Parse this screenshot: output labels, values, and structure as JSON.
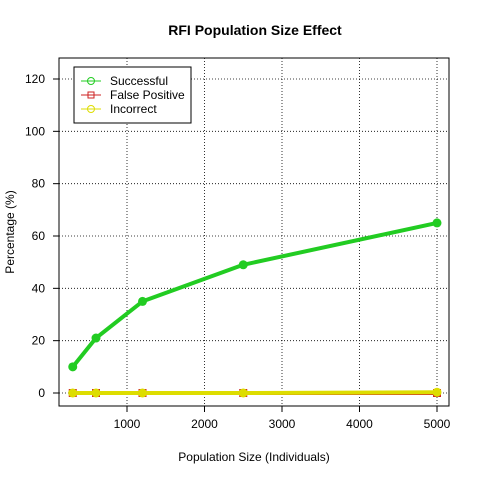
{
  "chart_data": {
    "type": "line",
    "title": "RFI Population Size Effect",
    "xlabel": "Population Size (Individuals)",
    "ylabel": "Percentage (%)",
    "xlim": [
      300,
      5000
    ],
    "ylim": [
      0,
      120
    ],
    "x_ticks": [
      1000,
      2000,
      3000,
      4000,
      5000
    ],
    "y_ticks": [
      0,
      20,
      40,
      60,
      80,
      100,
      120
    ],
    "grid": true,
    "legend_position": "top-left",
    "x": [
      300,
      600,
      1200,
      2500,
      5000
    ],
    "series": [
      {
        "name": "Successful",
        "values": [
          10,
          21,
          35,
          49,
          65
        ],
        "color": "#22cc22",
        "marker": "circle"
      },
      {
        "name": "False Positive",
        "values": [
          0,
          0,
          0,
          0,
          0
        ],
        "color": "#cc2222",
        "marker": "square"
      },
      {
        "name": "Incorrect",
        "values": [
          0,
          0,
          0,
          0,
          0.3
        ],
        "color": "#dddd00",
        "marker": "circle"
      }
    ]
  }
}
